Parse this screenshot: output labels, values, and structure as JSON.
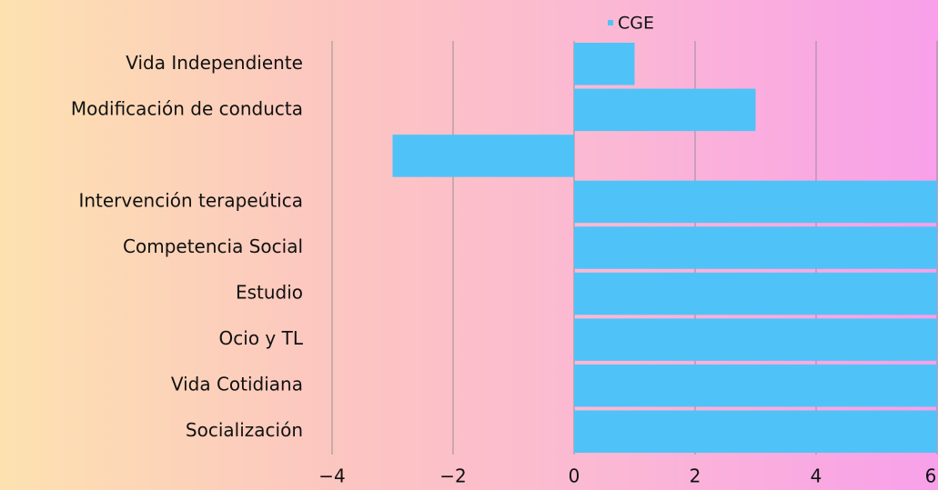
{
  "chart_data": {
    "type": "barh",
    "categories": [
      "Vida Independiente",
      "Modificación de conducta",
      null,
      "Intervención terapeútica",
      "Competencia Social",
      "Estudio",
      "Ocio y TL",
      "Vida Cotidiana",
      "Socialización"
    ],
    "series": [
      {
        "name": "CGE",
        "color": "#4fc3f7",
        "values": [
          1,
          3,
          -3,
          6,
          6,
          6,
          6,
          6,
          6
        ]
      }
    ],
    "xlim": [
      -4,
      6
    ],
    "xticks": [
      {
        "value": -4,
        "label": "−4"
      },
      {
        "value": -2,
        "label": "−2"
      },
      0,
      2,
      4,
      6
    ],
    "grid": true,
    "legend": "top"
  }
}
